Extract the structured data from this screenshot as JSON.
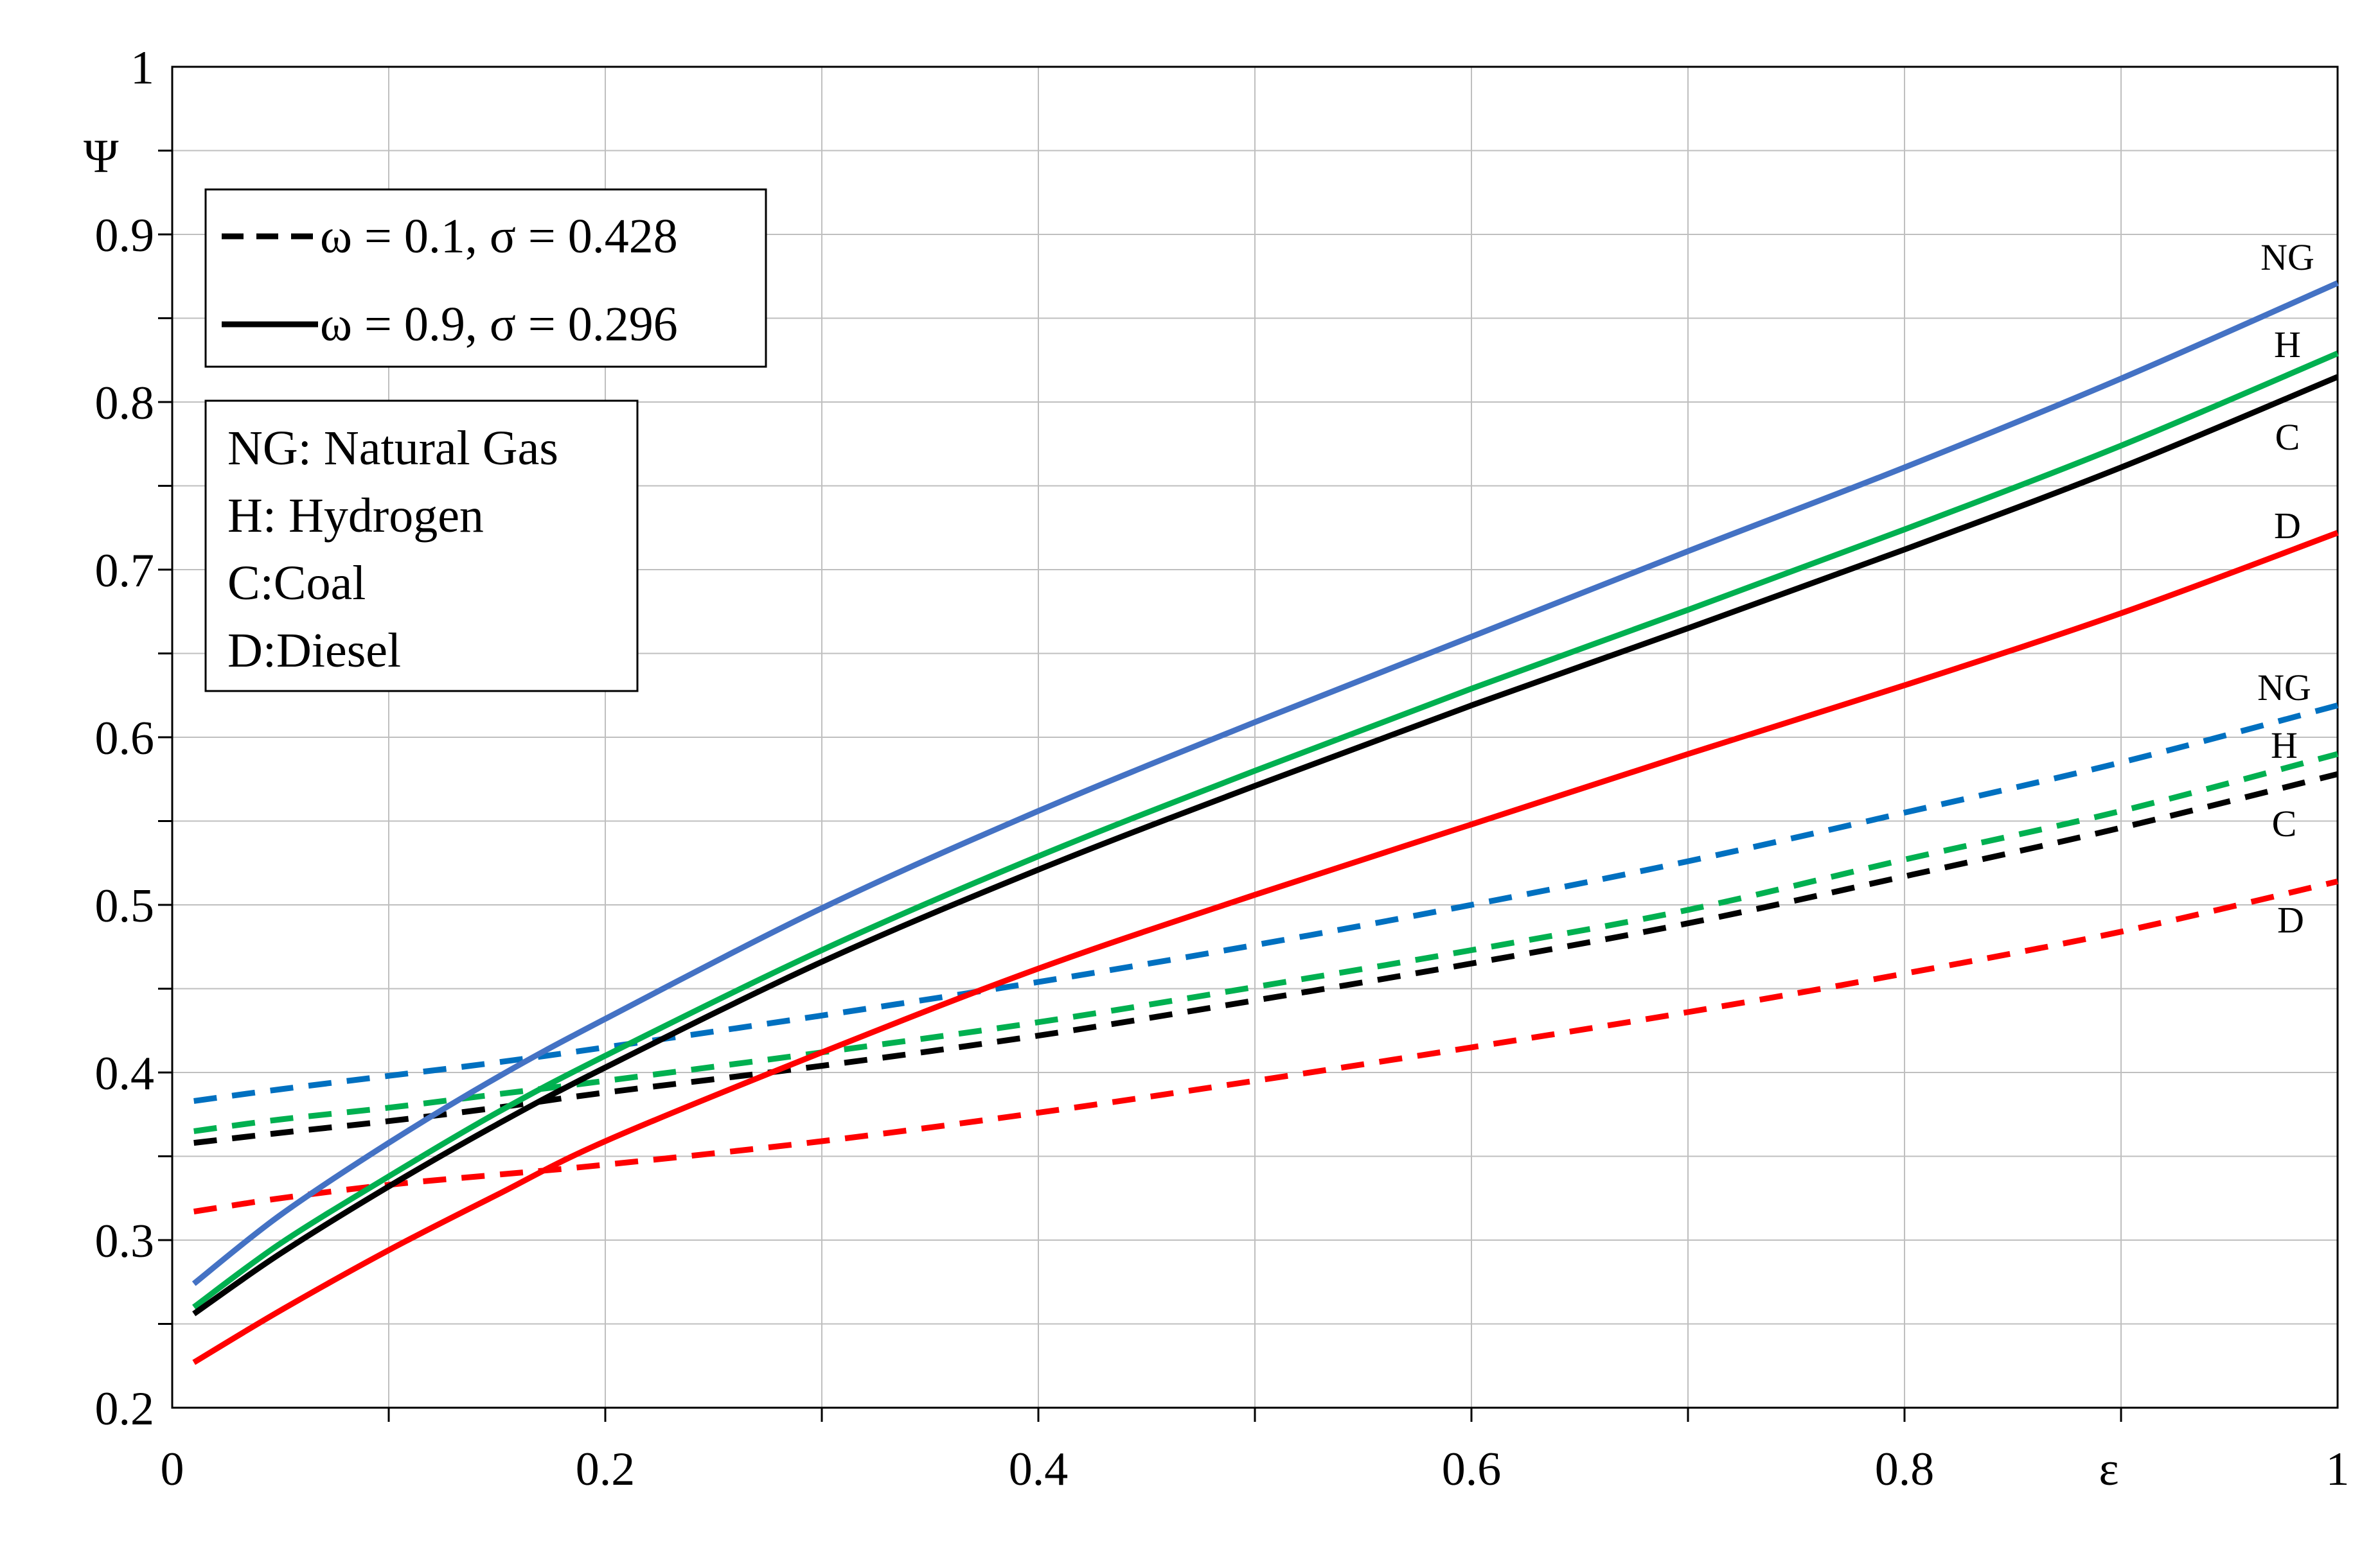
{
  "chart_data": {
    "type": "line",
    "title": "",
    "xlabel": "ε",
    "ylabel": "Ψ",
    "xlim": [
      0,
      1
    ],
    "ylim": [
      0.2,
      1
    ],
    "x_ticks": [
      0,
      0.2,
      0.4,
      0.6,
      0.8,
      1
    ],
    "x_tick_labels": [
      "0",
      "0.2",
      "0.4",
      "0.6",
      "0.8",
      "1"
    ],
    "y_ticks": [
      0.2,
      0.3,
      0.4,
      0.5,
      0.6,
      0.7,
      0.8,
      0.9,
      1
    ],
    "y_tick_labels": [
      "0.2",
      "0.3",
      "0.4",
      "0.5",
      "0.6",
      "0.7",
      "0.8",
      "0.9",
      "1"
    ],
    "grid": true,
    "legend": {
      "position": "top-left",
      "entries": [
        {
          "label": "ω = 0.1, σ = 0.428",
          "style": "dashed",
          "color": "#000000"
        },
        {
          "label": "ω = 0.9, σ = 0.296",
          "style": "solid",
          "color": "#000000"
        }
      ]
    },
    "key_box": {
      "lines": [
        "NG: Natural Gas",
        "H: Hydrogen",
        "C:Coal",
        "D:Diesel"
      ]
    },
    "x": [
      0.01,
      0.05,
      0.1,
      0.15,
      0.2,
      0.3,
      0.4,
      0.5,
      0.6,
      0.7,
      0.8,
      0.9,
      1.0
    ],
    "series": [
      {
        "name": "NG",
        "label": "NG",
        "style": "solid",
        "color": "#4472C4",
        "values": [
          0.274,
          0.315,
          0.358,
          0.397,
          0.432,
          0.498,
          0.556,
          0.609,
          0.66,
          0.711,
          0.761,
          0.814,
          0.871
        ]
      },
      {
        "name": "H",
        "label": "H",
        "style": "solid",
        "color": "#00B050",
        "values": [
          0.26,
          0.298,
          0.338,
          0.376,
          0.41,
          0.473,
          0.529,
          0.58,
          0.629,
          0.676,
          0.724,
          0.774,
          0.829
        ]
      },
      {
        "name": "C",
        "label": "C",
        "style": "solid",
        "color": "#000000",
        "values": [
          0.256,
          0.292,
          0.332,
          0.369,
          0.403,
          0.466,
          0.521,
          0.571,
          0.619,
          0.665,
          0.712,
          0.761,
          0.815
        ]
      },
      {
        "name": "D",
        "label": "D",
        "style": "solid",
        "color": "#FF0000",
        "values": [
          0.227,
          0.258,
          0.294,
          0.327,
          0.359,
          0.412,
          0.462,
          0.506,
          0.548,
          0.59,
          0.631,
          0.674,
          0.722
        ]
      },
      {
        "name": "NG",
        "label": "NG",
        "style": "dashed",
        "color": "#0070C0",
        "values": [
          0.383,
          0.39,
          0.398,
          0.406,
          0.415,
          0.434,
          0.454,
          0.476,
          0.5,
          0.526,
          0.555,
          0.585,
          0.619
        ]
      },
      {
        "name": "H",
        "label": "H",
        "style": "dashed",
        "color": "#00B050",
        "values": [
          0.365,
          0.372,
          0.379,
          0.387,
          0.395,
          0.412,
          0.43,
          0.451,
          0.473,
          0.497,
          0.527,
          0.556,
          0.59
        ]
      },
      {
        "name": "C",
        "label": "C",
        "style": "dashed",
        "color": "#000000",
        "values": [
          0.358,
          0.364,
          0.371,
          0.379,
          0.388,
          0.404,
          0.422,
          0.443,
          0.465,
          0.489,
          0.517,
          0.546,
          0.578
        ]
      },
      {
        "name": "D",
        "label": "D",
        "style": "dashed",
        "color": "#FF0000",
        "values": [
          0.317,
          0.325,
          0.333,
          0.339,
          0.345,
          0.359,
          0.376,
          0.395,
          0.415,
          0.436,
          0.459,
          0.484,
          0.514
        ]
      }
    ]
  }
}
